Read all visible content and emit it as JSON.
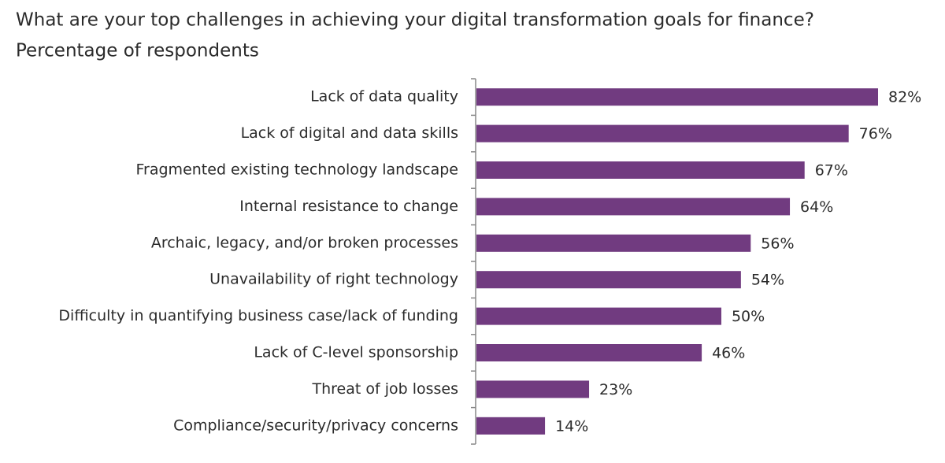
{
  "chart_data": {
    "type": "bar",
    "orientation": "horizontal",
    "title": "What are your top challenges in achieving your digital transformation goals for finance?",
    "subtitle": "Percentage of respondents",
    "categories": [
      "Lack of data quality",
      "Lack of digital and data skills",
      "Fragmented existing technology landscape",
      "Internal resistance to change",
      "Archaic, legacy, and/or broken processes",
      "Unavailability of right technology",
      "Difficulty in quantifying business case/lack of funding",
      "Lack of C-level sponsorship",
      "Threat of job losses",
      "Compliance/security/privacy concerns"
    ],
    "values": [
      82,
      76,
      67,
      64,
      56,
      54,
      50,
      46,
      23,
      14
    ],
    "value_labels": [
      "82%",
      "76%",
      "67%",
      "64%",
      "56%",
      "54%",
      "50%",
      "46%",
      "23%",
      "14%"
    ],
    "color": "#713b80"
  }
}
